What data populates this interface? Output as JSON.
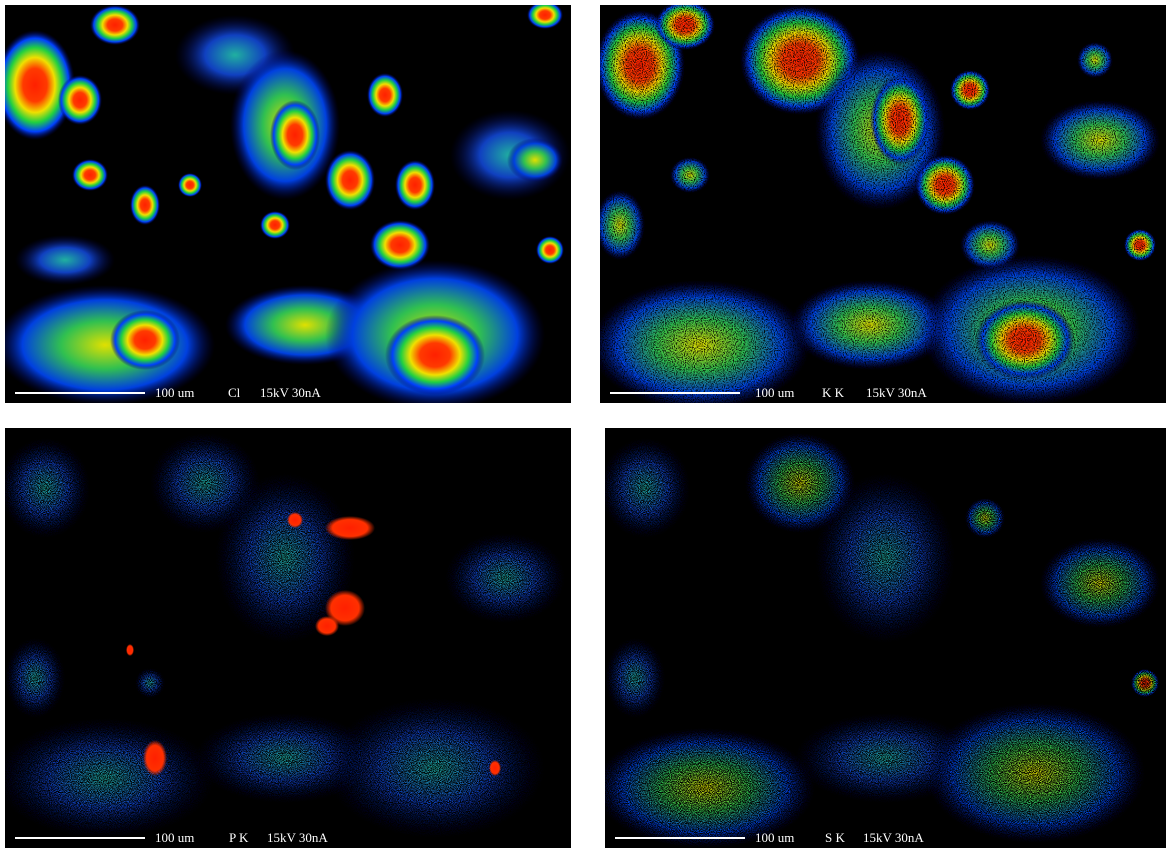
{
  "panels": [
    {
      "scale": "100 um",
      "element": "Cl",
      "conditions": "15kV 30nA"
    },
    {
      "scale": "100 um",
      "element": "K K",
      "conditions": "15kV 30nA"
    },
    {
      "scale": "100 um",
      "element": "P K",
      "conditions": "15kV 30nA"
    },
    {
      "scale": "100 um",
      "element": "S K",
      "conditions": "15kV 30nA"
    }
  ]
}
